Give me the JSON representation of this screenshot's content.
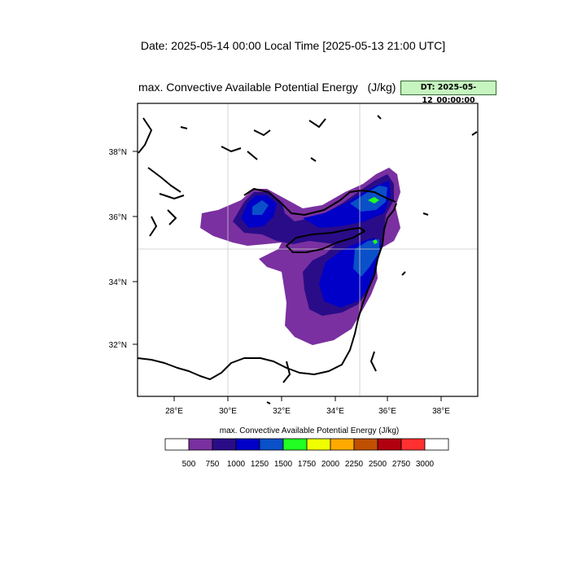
{
  "header": {
    "date_line": "Date: 2025-05-14  00:00 Local Time [2025-05-13  21:00 UTC]",
    "plot_title": "max. Convective Available Potential Energy   (J/kg)",
    "dt_badge": "DT: 2025-05-12_00:00:00"
  },
  "map": {
    "lon_ticks": [
      "28°E",
      "30°E",
      "32°E",
      "34°E",
      "36°E",
      "38°E"
    ],
    "lat_ticks": [
      "38°N",
      "36°N",
      "34°N",
      "32°N"
    ],
    "grid_lines": {
      "lon": "35°E",
      "lat": "35°N"
    }
  },
  "colorbar": {
    "title": "max. Convective Available Potential Energy  (J/kg)",
    "colors": [
      "#ffffff",
      "#7a30a0",
      "#2a0c88",
      "#0000c8",
      "#0a50c8",
      "#22ff22",
      "#f0ff00",
      "#ffaa00",
      "#c05000",
      "#b00010",
      "#ff3030",
      "#ffffff"
    ],
    "levels": [
      "500",
      "750",
      "1000",
      "1250",
      "1500",
      "1750",
      "2000",
      "2250",
      "2500",
      "2750",
      "3000"
    ]
  }
}
